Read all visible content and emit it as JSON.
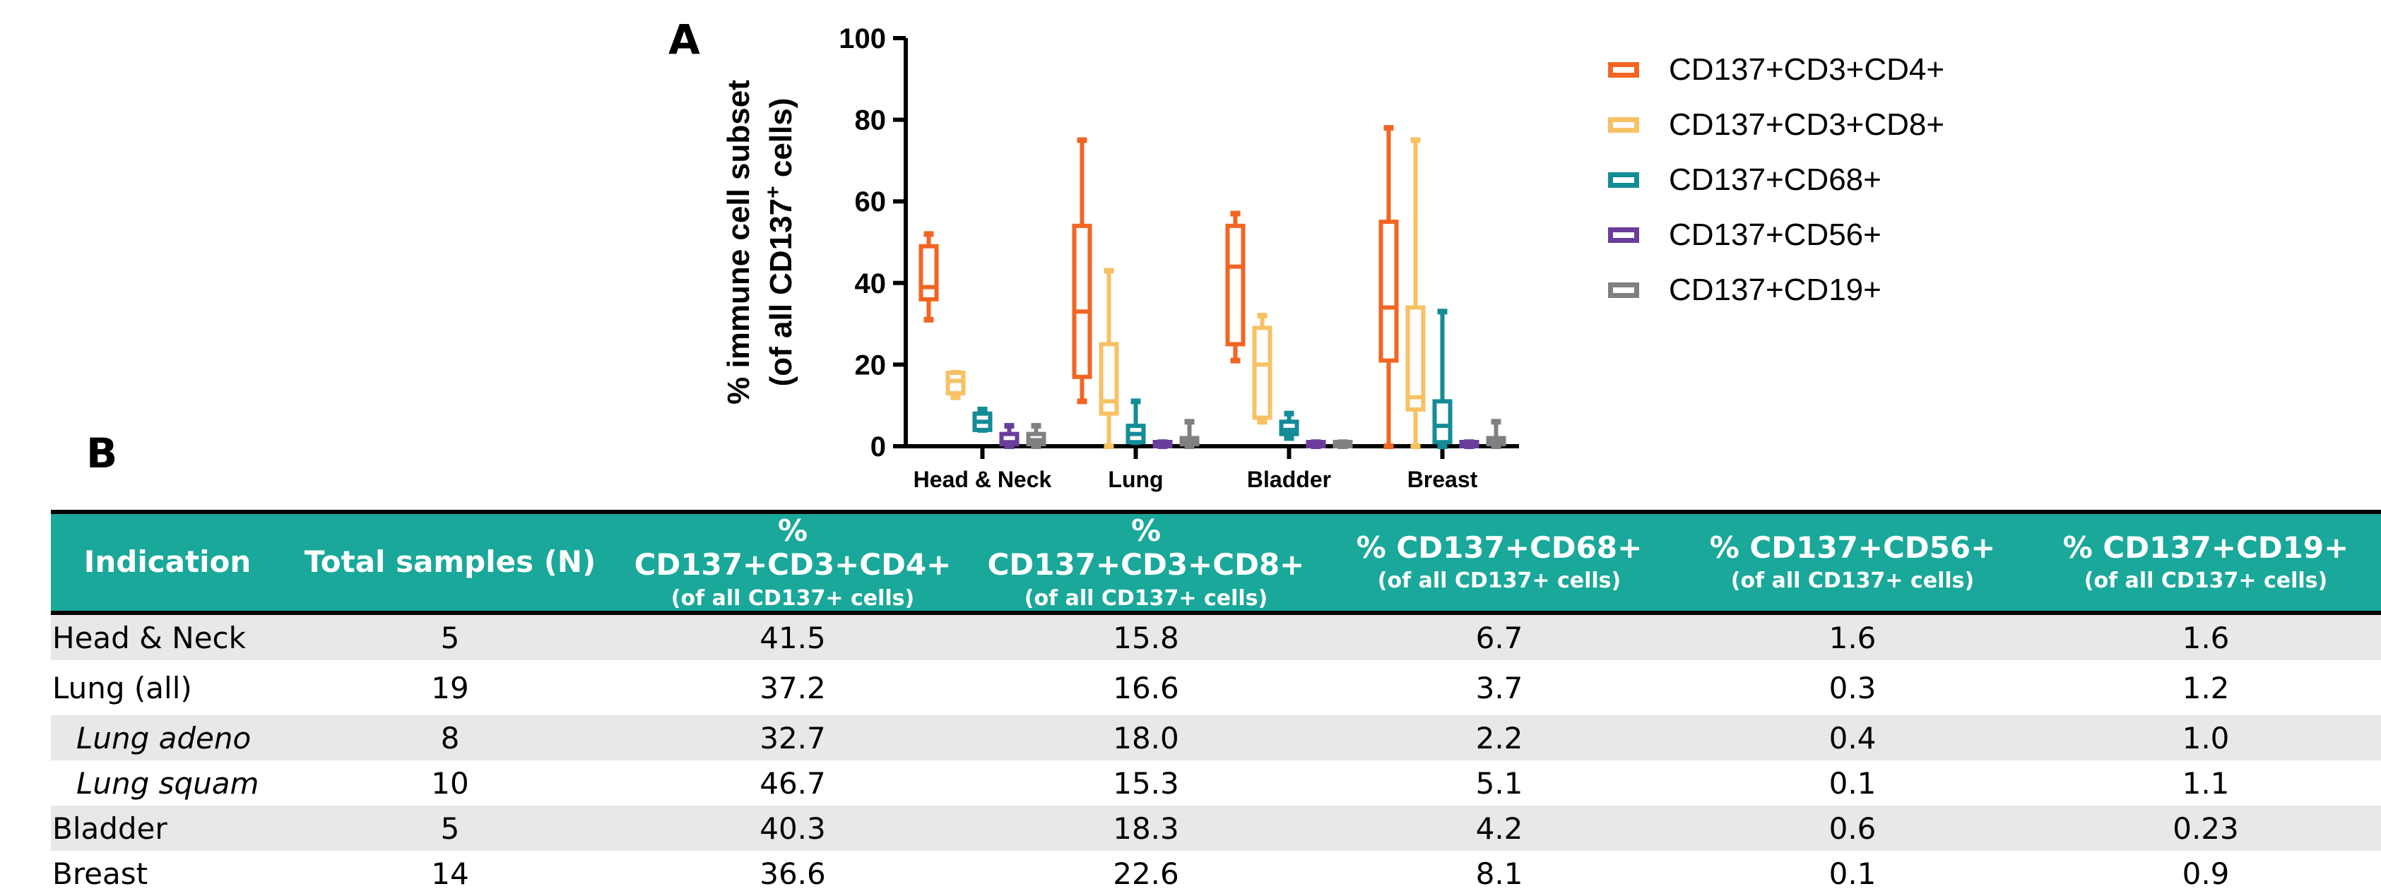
{
  "panel_labels": {
    "a": "A",
    "b": "B"
  },
  "chart_data": {
    "type": "box",
    "ylabel_line1": "% immune cell subset",
    "ylabel_line2_pre": "(of all CD137",
    "ylabel_line2_sup": "+",
    "ylabel_line2_post": " cells)",
    "ylim": [
      0,
      100
    ],
    "yticks": [
      "0",
      "20",
      "40",
      "60",
      "80",
      "100"
    ],
    "categories": [
      "Head & Neck",
      "Lung",
      "Bladder",
      "Breast"
    ],
    "legend_position": "right",
    "series": [
      {
        "name": "CD137+CD3+CD4+",
        "color": "#f26522",
        "boxes": [
          {
            "min": 31,
            "q1": 36,
            "median": 39,
            "q3": 49,
            "max": 52
          },
          {
            "min": 11,
            "q1": 17,
            "median": 33,
            "q3": 54,
            "max": 75
          },
          {
            "min": 21,
            "q1": 25,
            "median": 44,
            "q3": 54,
            "max": 57
          },
          {
            "min": 0,
            "q1": 21,
            "median": 34,
            "q3": 55,
            "max": 78
          }
        ]
      },
      {
        "name": "CD137+CD3+CD8+",
        "color": "#f7c164",
        "boxes": [
          {
            "min": 12,
            "q1": 13,
            "median": 16,
            "q3": 18,
            "max": 18
          },
          {
            "min": 0,
            "q1": 8,
            "median": 11,
            "q3": 25,
            "max": 43
          },
          {
            "min": 6,
            "q1": 7,
            "median": 20,
            "q3": 29,
            "max": 32
          },
          {
            "min": 0,
            "q1": 9,
            "median": 12,
            "q3": 34,
            "max": 75
          }
        ]
      },
      {
        "name": "CD137+CD68+",
        "color": "#138c96",
        "boxes": [
          {
            "min": 4,
            "q1": 4,
            "median": 6,
            "q3": 8,
            "max": 9
          },
          {
            "min": 1,
            "q1": 1,
            "median": 3,
            "q3": 5,
            "max": 11
          },
          {
            "min": 2,
            "q1": 3,
            "median": 4,
            "q3": 6,
            "max": 8
          },
          {
            "min": 0,
            "q1": 1,
            "median": 5,
            "q3": 11,
            "max": 33
          }
        ]
      },
      {
        "name": "CD137+CD56+",
        "color": "#6a3d9a",
        "boxes": [
          {
            "min": 0,
            "q1": 0.5,
            "median": 1,
            "q3": 3,
            "max": 5
          },
          {
            "min": 0,
            "q1": 0,
            "median": 0.3,
            "q3": 0.8,
            "max": 1
          },
          {
            "min": 0,
            "q1": 0,
            "median": 0.3,
            "q3": 0.8,
            "max": 1
          },
          {
            "min": 0,
            "q1": 0,
            "median": 0.3,
            "q3": 0.8,
            "max": 1
          }
        ]
      },
      {
        "name": "CD137+CD19+",
        "color": "#808080",
        "boxes": [
          {
            "min": 0,
            "q1": 0.5,
            "median": 1.5,
            "q3": 3,
            "max": 5
          },
          {
            "min": 0,
            "q1": 0.5,
            "median": 1,
            "q3": 2,
            "max": 6
          },
          {
            "min": 0,
            "q1": 0,
            "median": 0.3,
            "q3": 0.8,
            "max": 1
          },
          {
            "min": 0,
            "q1": 0.5,
            "median": 1,
            "q3": 2,
            "max": 6
          }
        ]
      }
    ]
  },
  "table": {
    "headers": [
      {
        "main": "Indication",
        "sub": ""
      },
      {
        "main": "Total samples (N)",
        "sub": ""
      },
      {
        "main": "% CD137+CD3+CD4+",
        "sub": "(of all CD137+ cells)"
      },
      {
        "main": "% CD137+CD3+CD8+",
        "sub": "(of all CD137+ cells)"
      },
      {
        "main": "% CD137+CD68+",
        "sub": "(of all CD137+ cells)"
      },
      {
        "main": "% CD137+CD56+",
        "sub": "(of all CD137+ cells)"
      },
      {
        "main": "% CD137+CD19+",
        "sub": "(of all CD137+ cells)"
      }
    ],
    "rows": [
      [
        "Head & Neck",
        "5",
        "41.5",
        "15.8",
        "6.7",
        "1.6",
        "1.6"
      ],
      [
        "Lung (all)",
        "19",
        "37.2",
        "16.6",
        "3.7",
        "0.3",
        "1.2"
      ],
      [
        "Lung adeno",
        "8",
        "32.7",
        "18.0",
        "2.2",
        "0.4",
        "1.0"
      ],
      [
        "Lung squam",
        "10",
        "46.7",
        "15.3",
        "5.1",
        "0.1",
        "1.1"
      ],
      [
        "Bladder",
        "5",
        "40.3",
        "18.3",
        "4.2",
        "0.6",
        "0.23"
      ],
      [
        "Breast",
        "14",
        "36.6",
        "22.6",
        "8.1",
        "0.1",
        "0.9"
      ]
    ]
  }
}
